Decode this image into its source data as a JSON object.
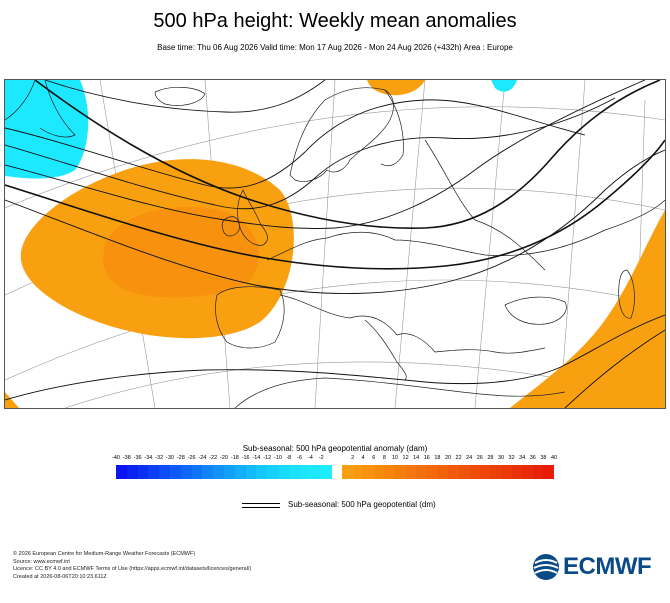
{
  "title": "500 hPa height: Weekly mean anomalies",
  "subtitle": "Base time: Thu 06 Aug 2026 Valid time: Mon 17 Aug 2026 - Mon 24 Aug 2026 (+432h) Area : Europe",
  "legend": {
    "title": "Sub-seasonal: 500 hPa geopotential anomaly (dam)",
    "negative_ticks": [
      "-40",
      "-38",
      "-36",
      "-34",
      "-32",
      "-30",
      "-28",
      "-26",
      "-24",
      "-22",
      "-20",
      "-18",
      "-16",
      "-14",
      "-12",
      "-10",
      "-8",
      "-6",
      "-4",
      "-2"
    ],
    "positive_ticks": [
      "2",
      "4",
      "6",
      "8",
      "10",
      "12",
      "14",
      "16",
      "18",
      "20",
      "22",
      "24",
      "26",
      "28",
      "30",
      "32",
      "34",
      "36",
      "38",
      "40"
    ],
    "negative_colors": [
      "#0a14f0",
      "#0a22f2",
      "#0b30f3",
      "#0c3ef5",
      "#0d4cf6",
      "#0e5af7",
      "#0f68f8",
      "#1076f9",
      "#1184fa",
      "#1292fb",
      "#13a0fc",
      "#14aefd",
      "#15bcfd",
      "#16c8fe",
      "#17d2fe",
      "#18daff",
      "#19e0ff",
      "#1ae6ff",
      "#1ce9ff",
      "#1eecff"
    ],
    "positive_colors": [
      "#f9a011",
      "#f89a10",
      "#f7930f",
      "#f68c0e",
      "#f5850d",
      "#f47e0c",
      "#f3770c",
      "#f2700b",
      "#f1690b",
      "#f0620a",
      "#ef5b0a",
      "#ee5409",
      "#ed4d09",
      "#ec4608",
      "#eb3f08",
      "#ea3807",
      "#e93107",
      "#e82a06",
      "#e72306",
      "#e61c05"
    ]
  },
  "contour_legend_label": "Sub-seasonal: 500 hPa geopotential (dm)",
  "footer": [
    "© 2026 European Centre for Medium-Range Weather Forecasts (ECMWF)",
    "Source: www.ecmwf.int",
    "Licence: CC BY 4.0 and ECMWF Terms of Use (https://apps.ecmwf.int/datasets/licences/general/)",
    "Created at 2026-08-06T20:10:23.611Z"
  ],
  "logo_text": "ECMWF",
  "map": {
    "positive_anomaly_color": "#f9a011",
    "negative_anomaly_color": "#1ce9ff",
    "coastline_color": "#222222",
    "graticule_color": "#9a9a9a"
  }
}
